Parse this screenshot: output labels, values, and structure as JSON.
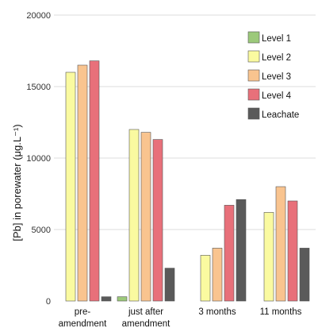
{
  "chart_data": {
    "type": "bar",
    "title": "",
    "xlabel": "",
    "ylabel": "[Pb] in porewater (μg.L⁻¹)",
    "ylim": [
      0,
      20000
    ],
    "yticks": [
      "0",
      "5000",
      "10000",
      "15000",
      "20000"
    ],
    "ytick_values": [
      0,
      5000,
      10000,
      15000,
      20000
    ],
    "grid": true,
    "legend_position": "top-right",
    "categories": [
      [
        "pre-",
        "amendment"
      ],
      [
        "just after",
        "amendment"
      ],
      [
        "3 months"
      ],
      [
        "11 months"
      ]
    ],
    "series": [
      {
        "name": "Level 1",
        "color": "#9cc97a",
        "values": [
          null,
          300,
          null,
          null
        ]
      },
      {
        "name": "Level 2",
        "color": "#fafaa0",
        "values": [
          16000,
          12000,
          3200,
          6200
        ]
      },
      {
        "name": "Level 3",
        "color": "#f9c48f",
        "values": [
          16500,
          11800,
          3700,
          8000
        ]
      },
      {
        "name": "Level 4",
        "color": "#e8707a",
        "values": [
          16800,
          11300,
          6700,
          7000
        ]
      },
      {
        "name": "Leachate",
        "color": "#5a5a5a",
        "values": [
          300,
          2300,
          7100,
          3700
        ]
      }
    ]
  }
}
